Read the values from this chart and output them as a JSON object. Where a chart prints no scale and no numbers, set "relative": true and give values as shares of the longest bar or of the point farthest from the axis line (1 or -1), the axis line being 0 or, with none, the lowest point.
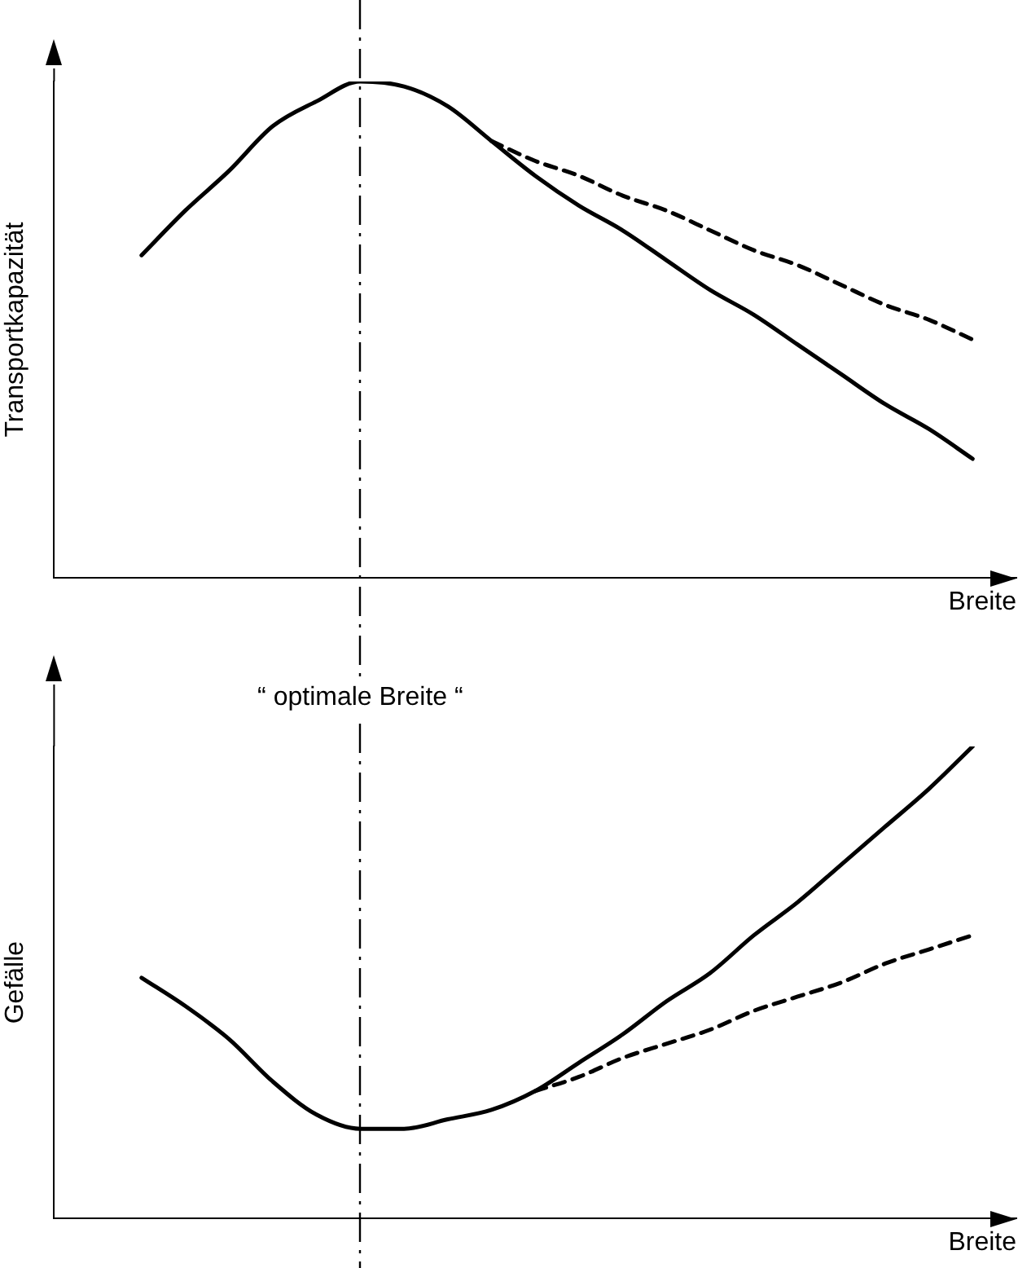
{
  "chart_data": [
    {
      "type": "line",
      "ylabel": "Transportkapazität",
      "xlabel": "Breite",
      "relative": true,
      "grid": false,
      "legend": false,
      "marker": "none",
      "categories": [
        null,
        null,
        null,
        null,
        null,
        null,
        null,
        null,
        null,
        null,
        null,
        null,
        null,
        null,
        null,
        null,
        null,
        null,
        null,
        null,
        null,
        null,
        null
      ],
      "series": [
        {
          "color": "#000000",
          "line_style": "solid",
          "values": [
            null,
            null,
            0.65,
            0.74,
            0.82,
            0.91,
            0.96,
            1.0,
            0.99,
            0.95,
            0.88,
            0.81,
            0.75,
            0.7,
            0.64,
            0.58,
            0.53,
            0.47,
            0.41,
            0.35,
            0.3,
            0.24,
            null
          ]
        },
        {
          "color": "#000000",
          "line_style": "dashed",
          "values": [
            null,
            null,
            null,
            null,
            null,
            null,
            null,
            null,
            null,
            null,
            0.88,
            0.84,
            0.81,
            0.77,
            0.74,
            0.7,
            0.66,
            0.63,
            0.59,
            0.55,
            0.52,
            0.48,
            null
          ]
        }
      ]
    },
    {
      "type": "line",
      "ylabel": "Gefälle",
      "xlabel": "Breite",
      "relative": true,
      "grid": false,
      "legend": false,
      "marker": "none",
      "categories": [
        null,
        null,
        null,
        null,
        null,
        null,
        null,
        null,
        null,
        null,
        null,
        null,
        null,
        null,
        null,
        null,
        null,
        null,
        null,
        null,
        null,
        null,
        null
      ],
      "series": [
        {
          "color": "#000000",
          "line_style": "solid",
          "values": [
            null,
            null,
            0.51,
            0.45,
            0.38,
            0.29,
            0.22,
            0.19,
            0.19,
            0.21,
            0.23,
            0.27,
            0.33,
            0.39,
            0.46,
            0.52,
            0.6,
            0.67,
            0.75,
            0.83,
            0.91,
            1.0,
            null
          ]
        },
        {
          "color": "#000000",
          "line_style": "dashed",
          "values": [
            null,
            null,
            null,
            null,
            null,
            null,
            null,
            null,
            null,
            null,
            null,
            0.27,
            0.3,
            0.34,
            0.37,
            0.4,
            0.44,
            0.47,
            0.5,
            0.54,
            0.57,
            0.6,
            null
          ]
        }
      ],
      "annotations": [
        "“ optimale Breite “"
      ]
    }
  ]
}
